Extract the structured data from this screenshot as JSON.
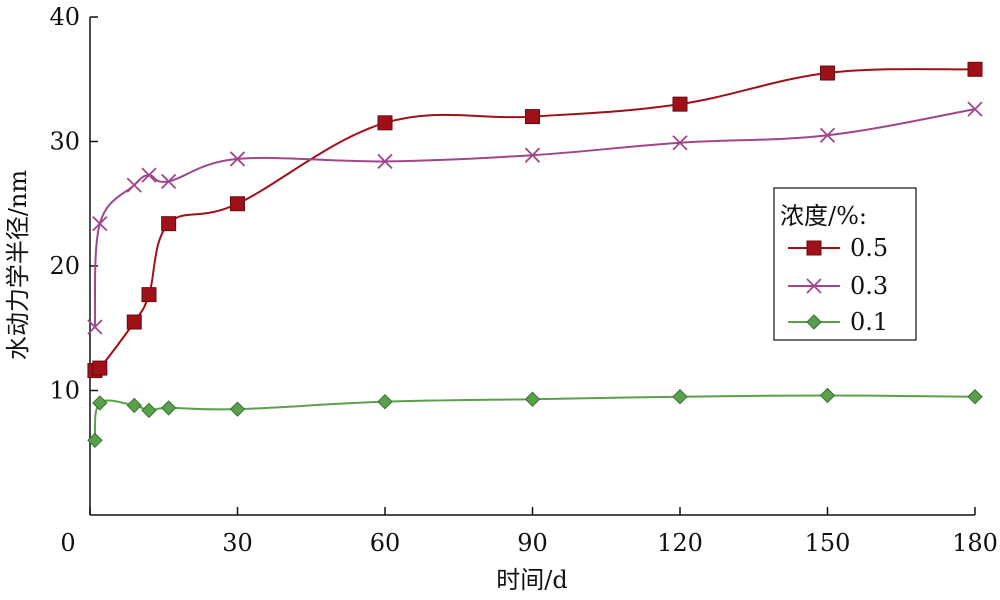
{
  "chart_data": {
    "type": "line",
    "title": "",
    "xlabel": "时间/d",
    "ylabel": "水动力学半径/nm",
    "xlim": [
      0,
      180
    ],
    "ylim": [
      0,
      40
    ],
    "x_ticks": [
      0,
      30,
      60,
      90,
      120,
      150,
      180
    ],
    "y_ticks": [
      10,
      20,
      30,
      40
    ],
    "y_tick_labels": [
      "10",
      "20",
      "30",
      "40"
    ],
    "legend": {
      "title": "浓度/%:",
      "placement": "right"
    },
    "series": [
      {
        "name": "0.5",
        "color": "#a01018",
        "marker": "square",
        "x": [
          1,
          2,
          9,
          12,
          16,
          30,
          60,
          90,
          120,
          150,
          180
        ],
        "y": [
          11.6,
          11.8,
          15.5,
          17.7,
          23.4,
          25.0,
          31.5,
          32.0,
          33.0,
          35.5,
          35.8
        ]
      },
      {
        "name": "0.3",
        "color": "#a0468c",
        "marker": "x",
        "x": [
          1,
          2,
          9,
          12,
          16,
          30,
          60,
          90,
          120,
          150,
          180
        ],
        "y": [
          15.1,
          23.4,
          26.5,
          27.3,
          26.8,
          28.6,
          28.4,
          28.9,
          29.9,
          30.5,
          32.6
        ]
      },
      {
        "name": "0.1",
        "color": "#5aa04a",
        "marker": "diamond",
        "x": [
          1,
          2,
          9,
          12,
          16,
          30,
          60,
          90,
          120,
          150,
          180
        ],
        "y": [
          6.0,
          9.0,
          8.8,
          8.4,
          8.6,
          8.5,
          9.1,
          9.3,
          9.5,
          9.6,
          9.5
        ]
      }
    ]
  }
}
